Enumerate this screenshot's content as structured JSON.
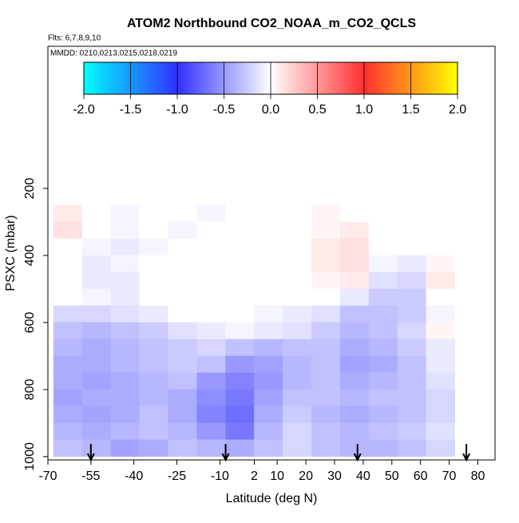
{
  "chart_data": {
    "type": "heatmap",
    "title": "ATOM2 Northbound CO2_NOAA_m_CO2_QCLS",
    "subtitle": "Flts: 6,7,8,9,10",
    "annotation": "MMDD: 0210,0213,0215,0218,0219",
    "x_label": "Latitude (deg N)",
    "y_label": "PSXC (mbar)",
    "xlim": [
      -70,
      86
    ],
    "ylim": [
      1010,
      -224
    ],
    "xticks": [
      -70,
      -55,
      -40,
      -25,
      -10,
      2,
      10,
      20,
      30,
      40,
      50,
      60,
      70,
      80
    ],
    "yticks": [
      200,
      400,
      600,
      800,
      1000
    ],
    "x_edges": [
      -68,
      -58,
      -48,
      -38,
      -28,
      -18,
      -8,
      2,
      12,
      22,
      32,
      42,
      52,
      62,
      72
    ],
    "y_edges": [
      250,
      300,
      350,
      400,
      450,
      500,
      550,
      600,
      650,
      700,
      750,
      800,
      850,
      900,
      950,
      1000
    ],
    "z": [
      [
        0.1,
        0,
        -0.05,
        0,
        0,
        -0.05,
        0,
        0,
        0,
        0.05,
        0,
        0,
        0,
        0
      ],
      [
        0.15,
        0,
        -0.05,
        0,
        -0.05,
        0,
        0,
        0,
        0,
        0.05,
        0.1,
        0,
        0,
        0
      ],
      [
        0,
        -0.05,
        -0.1,
        -0.05,
        0,
        0,
        0,
        0,
        0,
        0.1,
        0.15,
        0,
        0,
        0
      ],
      [
        0,
        -0.1,
        -0.05,
        0,
        0,
        0,
        0,
        0,
        0,
        0.1,
        0.15,
        -0.05,
        -0.1,
        0.05
      ],
      [
        0,
        -0.1,
        -0.1,
        0,
        0,
        0,
        0,
        0,
        0,
        0.05,
        0.1,
        -0.15,
        -0.2,
        0.1
      ],
      [
        0,
        -0.05,
        -0.1,
        0,
        0,
        0,
        0,
        0,
        0,
        0,
        -0.1,
        -0.25,
        -0.25,
        0
      ],
      [
        -0.2,
        -0.2,
        -0.15,
        -0.1,
        0,
        0,
        0,
        -0.05,
        -0.1,
        -0.15,
        -0.3,
        -0.3,
        -0.25,
        -0.05
      ],
      [
        -0.3,
        -0.35,
        -0.3,
        -0.25,
        -0.15,
        -0.1,
        -0.05,
        -0.1,
        -0.15,
        -0.25,
        -0.35,
        -0.3,
        -0.2,
        0.05
      ],
      [
        -0.35,
        -0.4,
        -0.35,
        -0.3,
        -0.25,
        -0.2,
        -0.3,
        -0.35,
        -0.3,
        -0.3,
        -0.4,
        -0.35,
        -0.25,
        -0.1
      ],
      [
        -0.4,
        -0.4,
        -0.35,
        -0.3,
        -0.25,
        -0.3,
        -0.5,
        -0.45,
        -0.35,
        -0.3,
        -0.45,
        -0.4,
        -0.3,
        -0.1
      ],
      [
        -0.4,
        -0.45,
        -0.4,
        -0.35,
        -0.3,
        -0.5,
        -0.6,
        -0.5,
        -0.35,
        -0.3,
        -0.4,
        -0.35,
        -0.3,
        -0.15
      ],
      [
        -0.45,
        -0.4,
        -0.4,
        -0.35,
        -0.4,
        -0.55,
        -0.65,
        -0.45,
        -0.3,
        -0.3,
        -0.35,
        -0.3,
        -0.3,
        -0.2
      ],
      [
        -0.4,
        -0.45,
        -0.4,
        -0.3,
        -0.4,
        -0.6,
        -0.7,
        -0.4,
        -0.25,
        -0.35,
        -0.4,
        -0.35,
        -0.3,
        -0.2
      ],
      [
        -0.35,
        -0.4,
        -0.35,
        -0.3,
        -0.35,
        -0.5,
        -0.65,
        -0.35,
        -0.2,
        -0.3,
        -0.35,
        -0.3,
        -0.25,
        -0.15
      ],
      [
        -0.3,
        -0.35,
        -0.45,
        -0.4,
        -0.3,
        -0.35,
        -0.4,
        -0.3,
        -0.2,
        -0.3,
        -0.35,
        -0.35,
        -0.3,
        -0.2
      ]
    ],
    "colorscale": [
      [
        -2,
        "#00ffff"
      ],
      [
        -1,
        "#3030ff"
      ],
      [
        0,
        "#ffffff"
      ],
      [
        1,
        "#ff3030"
      ],
      [
        2,
        "#ffff00"
      ]
    ],
    "colorbar_lim": [
      -2,
      2
    ],
    "colorbar_ticks": [
      {
        "value": -2,
        "label": "-2.0"
      },
      {
        "value": -1.5,
        "label": "-1.5"
      },
      {
        "value": -1,
        "label": "-1.0"
      },
      {
        "value": -0.5,
        "label": "-0.5"
      },
      {
        "value": 0,
        "label": "0.0"
      },
      {
        "value": 0.5,
        "label": "0.5"
      },
      {
        "value": 1,
        "label": "1.0"
      },
      {
        "value": 1.5,
        "label": "1.5"
      },
      {
        "value": 2,
        "label": "2.0"
      }
    ],
    "arrows": [
      -55,
      -8,
      38,
      76
    ]
  }
}
